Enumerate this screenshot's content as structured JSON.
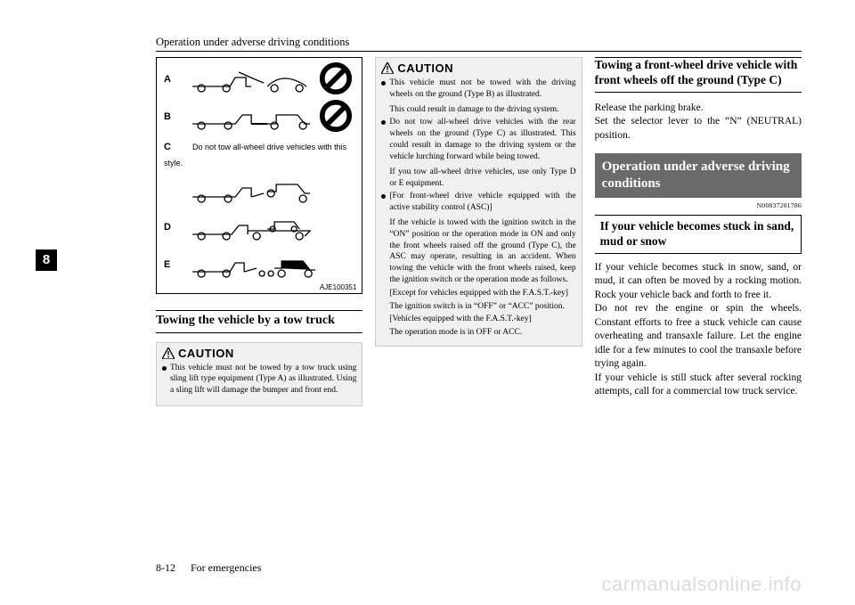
{
  "running_head": "Operation under adverse driving conditions",
  "side_index": "8",
  "footer": {
    "page": "8-12",
    "section": "For emergencies"
  },
  "watermark": "carmanualsonline.info",
  "figure": {
    "labels": {
      "a": "A",
      "b": "B",
      "c": "C",
      "d": "D",
      "e": "E"
    },
    "note_c": "Do not tow all-wheel drive vehicles with this style.",
    "code": "AJE100351"
  },
  "col1": {
    "heading": "Towing the vehicle by a tow truck",
    "caution_label": "CAUTION",
    "caution_items": [
      "This vehicle must not be towed by a tow truck using sling lift type equipment (Type A) as illustrated. Using a sling lift will damage the bumper and front end."
    ]
  },
  "col2": {
    "caution_label": "CAUTION",
    "caution_items": [
      {
        "text": "This vehicle must not be towed with the driving wheels on the ground (Type B) as illustrated.",
        "subs": [
          "This could result in damage to the driving system."
        ]
      },
      {
        "text": "Do not tow all-wheel drive vehicles with the rear wheels on the ground (Type C) as illustrated. This could result in damage to the driving system or the vehicle lurching forward while being towed.",
        "subs": [
          "If you tow all-wheel drive vehicles, use only Type D or E equipment."
        ]
      },
      {
        "text": "[For front-wheel drive vehicle equipped with the active stability control (ASC)]",
        "subs": [
          "If the vehicle is towed with the ignition switch in the “ON” position or the operation mode in ON and only the front wheels raised off the ground (Type C), the ASC may operate, resulting in an accident. When towing the vehicle with the front wheels raised, keep the ignition switch or the operation mode as follows.",
          "[Except for vehicles equipped with the F.A.S.T.-key]",
          "The ignition switch is in “OFF” or “ACC” position.",
          "[Vehicles equipped with the F.A.S.T.-key]",
          "The operation mode is in OFF or ACC."
        ]
      }
    ]
  },
  "col3": {
    "heading": "Towing a front-wheel drive vehicle with front wheels off the ground (Type C)",
    "body1": "Release the parking brake.\nSet the selector lever to the “N” (NEUTRAL) position.",
    "banner": "Operation under adverse driving conditions",
    "banner_code": "N00837201786",
    "subhead": "If your vehicle becomes stuck in sand, mud or snow",
    "body2": "If your vehicle becomes stuck in snow, sand, or mud, it can often be moved by a rocking motion. Rock your vehicle back and forth to free it.\nDo not rev the engine or spin the wheels. Constant efforts to free a stuck vehicle can cause overheating and transaxle failure. Let the engine idle for a few minutes to cool the transaxle before trying again.\nIf your vehicle is still stuck after several rocking attempts, call for a commercial tow truck service."
  }
}
